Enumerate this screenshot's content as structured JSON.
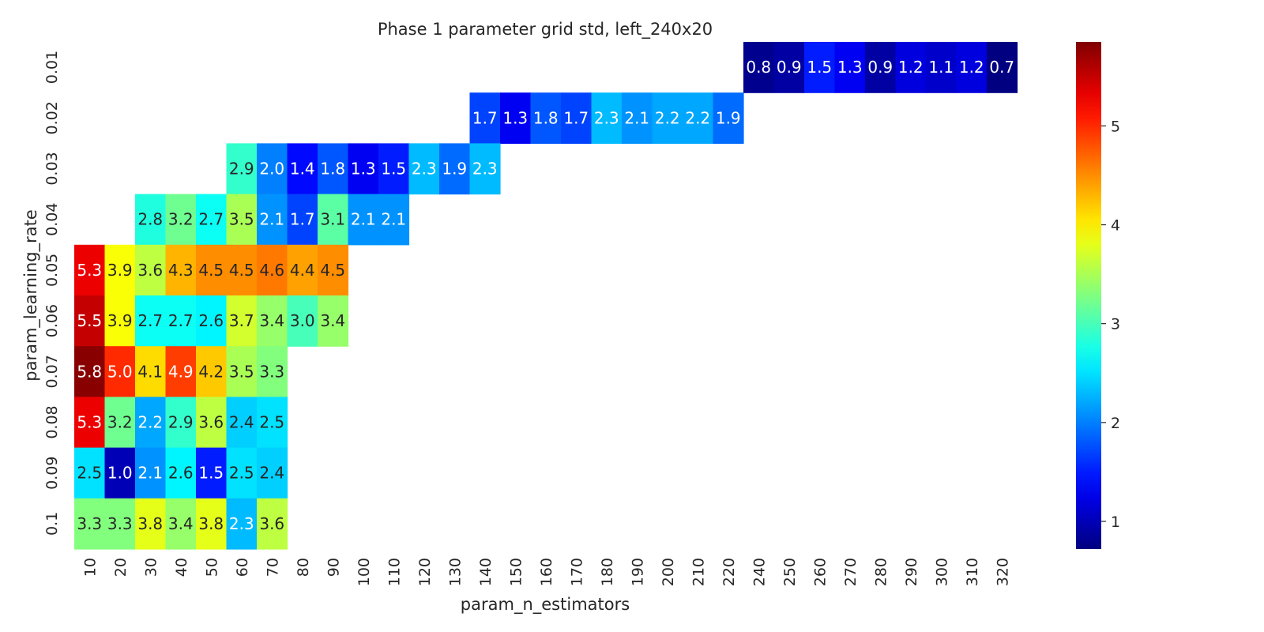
{
  "chart_data": {
    "type": "heatmap",
    "title": "Phase 1 parameter grid std, left_240x20",
    "xlabel": "param_n_estimators",
    "ylabel": "param_learning_rate",
    "x_categories": [
      "10",
      "20",
      "30",
      "40",
      "50",
      "60",
      "70",
      "80",
      "90",
      "100",
      "110",
      "120",
      "130",
      "140",
      "150",
      "160",
      "170",
      "180",
      "190",
      "200",
      "210",
      "220",
      "240",
      "250",
      "260",
      "270",
      "280",
      "290",
      "300",
      "310",
      "320"
    ],
    "y_categories": [
      "0.01",
      "0.02",
      "0.03",
      "0.04",
      "0.05",
      "0.06",
      "0.07",
      "0.08",
      "0.09",
      "0.1"
    ],
    "values": [
      [
        null,
        null,
        null,
        null,
        null,
        null,
        null,
        null,
        null,
        null,
        null,
        null,
        null,
        null,
        null,
        null,
        null,
        null,
        null,
        null,
        null,
        null,
        0.8,
        0.9,
        1.5,
        1.3,
        0.9,
        1.2,
        1.1,
        1.2,
        0.7
      ],
      [
        null,
        null,
        null,
        null,
        null,
        null,
        null,
        null,
        null,
        null,
        null,
        null,
        null,
        1.7,
        1.3,
        1.8,
        1.7,
        2.3,
        2.1,
        2.2,
        2.2,
        1.9,
        null,
        null,
        null,
        null,
        null,
        null,
        null,
        null,
        null
      ],
      [
        null,
        null,
        null,
        null,
        null,
        2.9,
        2.0,
        1.4,
        1.8,
        1.3,
        1.5,
        2.3,
        1.9,
        2.3,
        null,
        null,
        null,
        null,
        null,
        null,
        null,
        null,
        null,
        null,
        null,
        null,
        null,
        null,
        null,
        null,
        null
      ],
      [
        null,
        null,
        2.8,
        3.2,
        2.7,
        3.5,
        2.1,
        1.7,
        3.1,
        2.1,
        2.1,
        null,
        null,
        null,
        null,
        null,
        null,
        null,
        null,
        null,
        null,
        null,
        null,
        null,
        null,
        null,
        null,
        null,
        null,
        null,
        null
      ],
      [
        5.3,
        3.9,
        3.6,
        4.3,
        4.5,
        4.5,
        4.6,
        4.4,
        4.5,
        null,
        null,
        null,
        null,
        null,
        null,
        null,
        null,
        null,
        null,
        null,
        null,
        null,
        null,
        null,
        null,
        null,
        null,
        null,
        null,
        null,
        null
      ],
      [
        5.5,
        3.9,
        2.7,
        2.7,
        2.6,
        3.7,
        3.4,
        3.0,
        3.4,
        null,
        null,
        null,
        null,
        null,
        null,
        null,
        null,
        null,
        null,
        null,
        null,
        null,
        null,
        null,
        null,
        null,
        null,
        null,
        null,
        null,
        null
      ],
      [
        5.8,
        5.0,
        4.1,
        4.9,
        4.2,
        3.5,
        3.3,
        null,
        null,
        null,
        null,
        null,
        null,
        null,
        null,
        null,
        null,
        null,
        null,
        null,
        null,
        null,
        null,
        null,
        null,
        null,
        null,
        null,
        null,
        null,
        null
      ],
      [
        5.3,
        3.2,
        2.2,
        2.9,
        3.6,
        2.4,
        2.5,
        null,
        null,
        null,
        null,
        null,
        null,
        null,
        null,
        null,
        null,
        null,
        null,
        null,
        null,
        null,
        null,
        null,
        null,
        null,
        null,
        null,
        null,
        null,
        null
      ],
      [
        2.5,
        1.0,
        2.1,
        2.6,
        1.5,
        2.5,
        2.4,
        null,
        null,
        null,
        null,
        null,
        null,
        null,
        null,
        null,
        null,
        null,
        null,
        null,
        null,
        null,
        null,
        null,
        null,
        null,
        null,
        null,
        null,
        null,
        null
      ],
      [
        3.3,
        3.3,
        3.8,
        3.4,
        3.8,
        2.3,
        3.6,
        null,
        null,
        null,
        null,
        null,
        null,
        null,
        null,
        null,
        null,
        null,
        null,
        null,
        null,
        null,
        null,
        null,
        null,
        null,
        null,
        null,
        null,
        null,
        null
      ]
    ],
    "colormap": "jet",
    "colorbar": {
      "min": 0.72,
      "max": 5.85,
      "ticks": [
        1,
        2,
        3,
        4,
        5
      ]
    },
    "grid": false
  }
}
